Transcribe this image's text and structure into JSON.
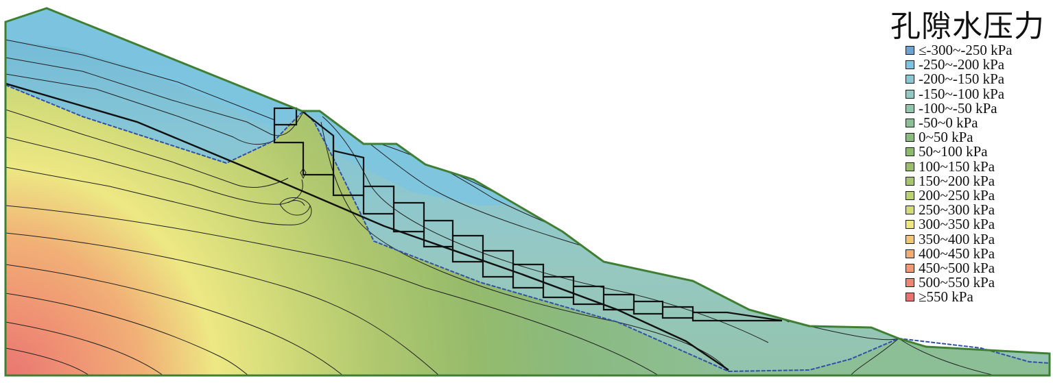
{
  "legend": {
    "title": "孔隙水压力",
    "items": [
      {
        "label": "≤-300~-250 kPa",
        "color": "#6fa3cf"
      },
      {
        "label": "-250~-200 kPa",
        "color": "#7cc4e0"
      },
      {
        "label": "-200~-150 kPa",
        "color": "#89c7d2"
      },
      {
        "label": "-150~-100 kPa",
        "color": "#96c8c2"
      },
      {
        "label": "-100~-50 kPa",
        "color": "#93c4ad"
      },
      {
        "label": "-50~0 kPa",
        "color": "#8dbf96"
      },
      {
        "label": "0~50 kPa",
        "color": "#8aba80"
      },
      {
        "label": "50~100 kPa",
        "color": "#8fba6b"
      },
      {
        "label": "100~150 kPa",
        "color": "#9cbe6c"
      },
      {
        "label": "150~200 kPa",
        "color": "#a9c46e"
      },
      {
        "label": "200~250 kPa",
        "color": "#bcd272"
      },
      {
        "label": "250~300 kPa",
        "color": "#d4dc7a"
      },
      {
        "label": "300~350 kPa",
        "color": "#ede884"
      },
      {
        "label": "350~400 kPa",
        "color": "#f0c77a"
      },
      {
        "label": "400~450 kPa",
        "color": "#f1ac74"
      },
      {
        "label": "450~500 kPa",
        "color": "#f09a73"
      },
      {
        "label": "500~550 kPa",
        "color": "#ec8573"
      },
      {
        "label": "≥550 kPa",
        "color": "#e87272"
      }
    ]
  },
  "colors": {
    "surface_outline": "#3f7f33",
    "water_table": "#2f4fa8",
    "contour": "#1f1f1f",
    "structure": "#111111"
  }
}
